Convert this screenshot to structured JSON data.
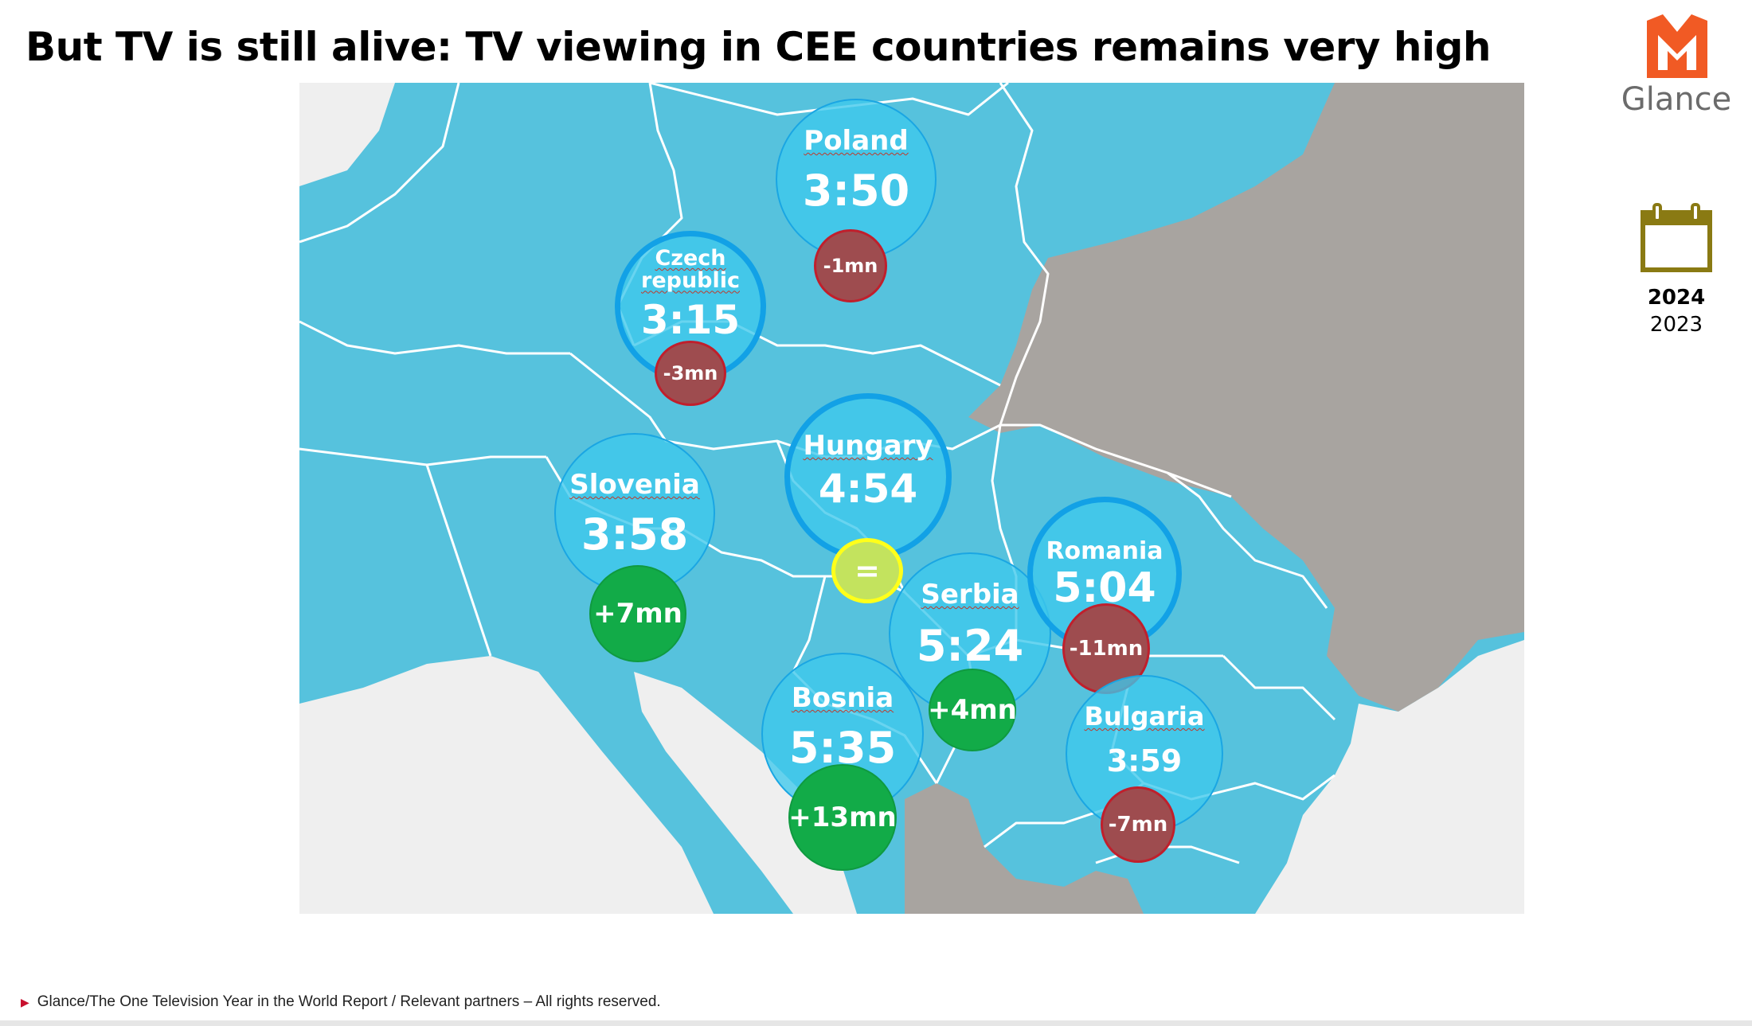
{
  "title": "But TV is still alive: TV viewing in CEE countries remains very high",
  "brand": {
    "name": "Glance",
    "color": "#f15a24"
  },
  "legend": {
    "icon": "calendar-icon",
    "year_current": "2024",
    "year_previous": "2023",
    "icon_color": "#8a7a13"
  },
  "countries": [
    {
      "key": "poland",
      "name": "Poland",
      "time": "3:50",
      "change": "-1mn",
      "change_type": "negative"
    },
    {
      "key": "czech",
      "name": "Czech republic",
      "time": "3:15",
      "change": "-3mn",
      "change_type": "negative"
    },
    {
      "key": "hungary",
      "name": "Hungary",
      "time": "4:54",
      "change": "=",
      "change_type": "equal"
    },
    {
      "key": "slovenia",
      "name": "Slovenia",
      "time": "3:58",
      "change": "+7mn",
      "change_type": "positive"
    },
    {
      "key": "serbia",
      "name": "Serbia",
      "time": "5:24",
      "change": "+4mn",
      "change_type": "positive"
    },
    {
      "key": "romania",
      "name": "Romania",
      "time": "5:04",
      "change": "-11mn",
      "change_type": "negative"
    },
    {
      "key": "bosnia",
      "name": "Bosnia",
      "time": "5:35",
      "change": "+13mn",
      "change_type": "positive"
    },
    {
      "key": "bulgaria",
      "name": "Bulgaria",
      "time": "3:59",
      "change": "-7mn",
      "change_type": "negative"
    }
  ],
  "colors": {
    "map_water": "#56c2dd",
    "land_other": "#a8a4a0",
    "sea": "#efefef",
    "bubble": "#3ec8ec",
    "negative": "#9e4c4f",
    "positive": "#12ab48",
    "equal": "#c3e35e"
  },
  "footer": "Glance/The One Television Year in the World Report / Relevant partners – All rights reserved."
}
